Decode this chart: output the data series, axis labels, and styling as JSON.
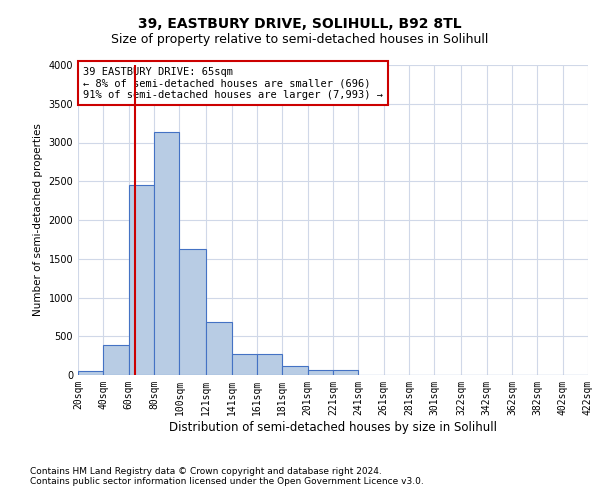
{
  "title": "39, EASTBURY DRIVE, SOLIHULL, B92 8TL",
  "subtitle": "Size of property relative to semi-detached houses in Solihull",
  "xlabel": "Distribution of semi-detached houses by size in Solihull",
  "ylabel": "Number of semi-detached properties",
  "footer1": "Contains HM Land Registry data © Crown copyright and database right 2024.",
  "footer2": "Contains public sector information licensed under the Open Government Licence v3.0.",
  "annotation_title": "39 EASTBURY DRIVE: 65sqm",
  "annotation_line1": "← 8% of semi-detached houses are smaller (696)",
  "annotation_line2": "91% of semi-detached houses are larger (7,993) →",
  "property_size": 65,
  "bar_left_edges": [
    20,
    40,
    60,
    80,
    100,
    121,
    141,
    161,
    181,
    201,
    221,
    241,
    261,
    281,
    301,
    322,
    342,
    362,
    382,
    402
  ],
  "bar_widths": [
    20,
    20,
    20,
    20,
    21,
    20,
    20,
    20,
    20,
    20,
    20,
    20,
    20,
    20,
    21,
    20,
    20,
    20,
    20,
    20
  ],
  "bar_heights": [
    50,
    390,
    2450,
    3130,
    1630,
    680,
    270,
    270,
    120,
    65,
    65,
    0,
    0,
    0,
    0,
    0,
    0,
    0,
    0,
    0
  ],
  "tick_labels": [
    "20sqm",
    "40sqm",
    "60sqm",
    "80sqm",
    "100sqm",
    "121sqm",
    "141sqm",
    "161sqm",
    "181sqm",
    "201sqm",
    "221sqm",
    "241sqm",
    "261sqm",
    "281sqm",
    "301sqm",
    "322sqm",
    "342sqm",
    "362sqm",
    "382sqm",
    "402sqm",
    "422sqm"
  ],
  "tick_positions": [
    20,
    40,
    60,
    80,
    100,
    121,
    141,
    161,
    181,
    201,
    221,
    241,
    261,
    281,
    301,
    322,
    342,
    362,
    382,
    402,
    422
  ],
  "bar_color": "#b8cce4",
  "bar_edge_color": "#4472c4",
  "red_line_color": "#cc0000",
  "annotation_box_color": "#cc0000",
  "grid_color": "#d0d8e8",
  "background_color": "#ffffff",
  "ylim": [
    0,
    4000
  ],
  "xlim": [
    20,
    422
  ],
  "title_fontsize": 10,
  "subtitle_fontsize": 9,
  "ylabel_fontsize": 7.5,
  "xlabel_fontsize": 8.5,
  "tick_fontsize": 7,
  "annotation_fontsize": 7.5,
  "footer_fontsize": 6.5
}
